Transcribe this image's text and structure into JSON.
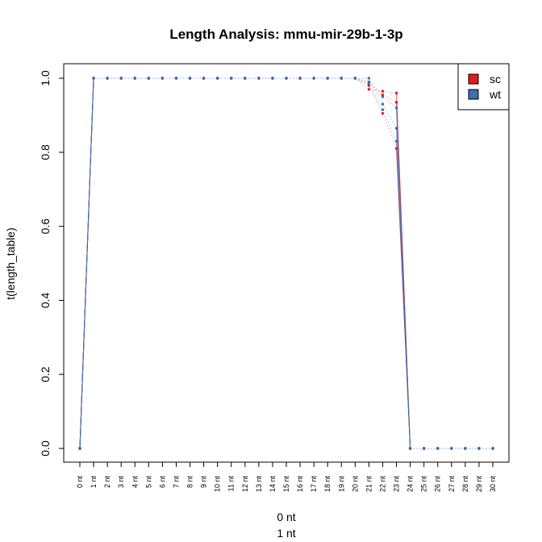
{
  "chart_data": {
    "type": "line",
    "title": "Length Analysis: mmu-mir-29b-1-3p",
    "ylabel": "t(length_table)",
    "xlabel_lines": [
      "0 nt",
      "1 nt"
    ],
    "categories": [
      "0 nt",
      "1 nt",
      "2 nt",
      "3 nt",
      "4 nt",
      "5 nt",
      "6 nt",
      "7 nt",
      "8 nt",
      "9 nt",
      "10 nt",
      "11 nt",
      "12 nt",
      "13 nt",
      "14 nt",
      "15 nt",
      "16 nt",
      "17 nt",
      "18 nt",
      "19 nt",
      "20 nt",
      "21 nt",
      "22 nt",
      "23 nt",
      "24 nt",
      "25 nt",
      "26 nt",
      "27 nt",
      "28 nt",
      "29 nt",
      "30 nt"
    ],
    "ylim": [
      0,
      1
    ],
    "yticks": [
      "0.0",
      "0.2",
      "0.4",
      "0.6",
      "0.8",
      "1.0"
    ],
    "grid": false,
    "legend_position": "top-right",
    "series": [
      {
        "name": "sc",
        "color": "#e31a1c",
        "values": [
          0,
          1,
          1,
          1,
          1,
          1,
          1,
          1,
          1,
          1,
          1,
          1,
          1,
          1,
          1,
          1,
          1,
          1,
          1,
          1,
          1,
          0.97,
          0.965,
          0.96,
          0,
          0,
          0,
          0,
          0,
          0,
          0
        ]
      },
      {
        "name": "sc",
        "color": "#e31a1c",
        "values": [
          0,
          1,
          1,
          1,
          1,
          1,
          1,
          1,
          1,
          1,
          1,
          1,
          1,
          1,
          1,
          1,
          1,
          1,
          1,
          1,
          1,
          0.98,
          0.905,
          0.81,
          0,
          0,
          0,
          0,
          0,
          0,
          0
        ]
      },
      {
        "name": "sc",
        "color": "#e31a1c",
        "values": [
          0,
          1,
          1,
          1,
          1,
          1,
          1,
          1,
          1,
          1,
          1,
          1,
          1,
          1,
          1,
          1,
          1,
          1,
          1,
          1,
          1,
          0.99,
          0.955,
          0.935,
          0,
          0,
          0,
          0,
          0,
          0,
          0
        ]
      },
      {
        "name": "wt",
        "color": "#3a6fb0",
        "values": [
          0,
          1,
          1,
          1,
          1,
          1,
          1,
          1,
          1,
          1,
          1,
          1,
          1,
          1,
          1,
          1,
          1,
          1,
          1,
          1,
          1,
          1.0,
          0.93,
          0.865,
          0,
          0,
          0,
          0,
          0,
          0,
          0
        ]
      },
      {
        "name": "wt",
        "color": "#3a6fb0",
        "values": [
          0,
          1,
          1,
          1,
          1,
          1,
          1,
          1,
          1,
          1,
          1,
          1,
          1,
          1,
          1,
          1,
          1,
          1,
          1,
          1,
          1,
          0.985,
          0.915,
          0.83,
          0,
          0,
          0,
          0,
          0,
          0,
          0
        ]
      },
      {
        "name": "wt",
        "color": "#3a6fb0",
        "values": [
          0,
          1,
          1,
          1,
          1,
          1,
          1,
          1,
          1,
          1,
          1,
          1,
          1,
          1,
          1,
          1,
          1,
          1,
          1,
          1,
          1,
          0.99,
          0.95,
          0.92,
          0,
          0,
          0,
          0,
          0,
          0,
          0
        ]
      }
    ],
    "legend": [
      {
        "label": "sc",
        "color": "#e31a1c"
      },
      {
        "label": "wt",
        "color": "#3a6fb0"
      }
    ]
  }
}
